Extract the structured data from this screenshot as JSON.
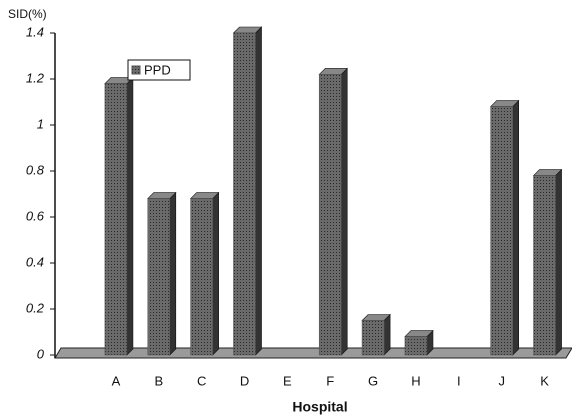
{
  "chart_data": {
    "type": "bar",
    "y_axis_label": "SID(%)",
    "x_axis_label": "Hospital",
    "categories": [
      "A",
      "B",
      "C",
      "D",
      "E",
      "F",
      "G",
      "H",
      "I",
      "J",
      "K"
    ],
    "series": [
      {
        "name": "PPD",
        "color": "#555555",
        "values": [
          1.18,
          0.68,
          0.68,
          1.4,
          0,
          1.22,
          0.15,
          0.08,
          0,
          1.08,
          0.78
        ]
      }
    ],
    "ylim": [
      0,
      1.4
    ],
    "yticks": [
      0,
      0.2,
      0.4,
      0.6,
      0.8,
      1,
      1.2,
      1.4
    ],
    "legend": "top-left"
  }
}
